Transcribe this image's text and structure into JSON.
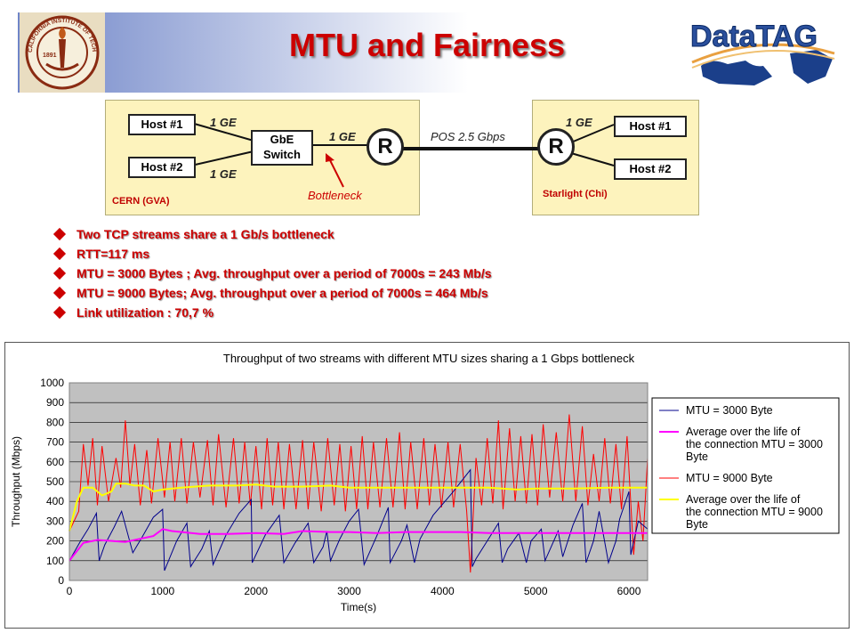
{
  "slide": {
    "title": "MTU and Fairness",
    "left_logo_text": "CALIFORNIA INSTITUTE OF TECHNOLOGY",
    "left_logo_year": "1891",
    "right_logo_text": "DataTAG"
  },
  "diagram": {
    "left_site": "CERN (GVA)",
    "right_site": "Starlight (Chi)",
    "left_host1": "Host #1",
    "left_host2": "Host #2",
    "right_host1": "Host #1",
    "right_host2": "Host #2",
    "switch_label": "GbE Switch",
    "link_h1": "1 GE",
    "link_h2": "1 GE",
    "link_switch": "1 GE",
    "link_right": "1 GE",
    "wan_link": "POS 2.5 Gbps",
    "router_label": "R",
    "bottleneck": "Bottleneck"
  },
  "bullets": [
    "Two TCP streams share a 1 Gb/s bottleneck",
    "RTT=117 ms",
    "MTU = 3000 Bytes ; Avg. throughput over a period of 7000s = 243 Mb/s",
    "MTU = 9000 Bytes; Avg. throughput over a period of 7000s = 464 Mb/s",
    "Link utilization  : 70,7 %"
  ],
  "chart_data": {
    "type": "line",
    "title": "Throughput of two streams with different MTU sizes sharing a 1 Gbps bottleneck",
    "xlabel": "Time(s)",
    "ylabel": "Throughput (Mbps)",
    "xlim": [
      0,
      6200
    ],
    "ylim": [
      0,
      1000
    ],
    "xticks": [
      0,
      1000,
      2000,
      3000,
      4000,
      5000,
      6000
    ],
    "yticks": [
      0,
      100,
      200,
      300,
      400,
      500,
      600,
      700,
      800,
      900,
      1000
    ],
    "grid": true,
    "plot_background": "#c0c0c0",
    "legend_position": "right",
    "series": [
      {
        "name": "MTU = 3000 Byte",
        "color": "#00008b",
        "x": [
          0,
          120,
          200,
          290,
          320,
          380,
          480,
          560,
          680,
          780,
          900,
          1000,
          1020,
          1150,
          1260,
          1300,
          1420,
          1500,
          1540,
          1680,
          1820,
          1950,
          1960,
          2100,
          2250,
          2300,
          2420,
          2560,
          2620,
          2720,
          2760,
          2800,
          2900,
          3000,
          3100,
          3160,
          3300,
          3420,
          3440,
          3560,
          3620,
          3700,
          3760,
          3900,
          4100,
          4300,
          4320,
          4360,
          4480,
          4600,
          4640,
          4700,
          4820,
          4900,
          4950,
          5060,
          5100,
          5240,
          5290,
          5400,
          5500,
          5540,
          5620,
          5680,
          5780,
          5860,
          5900,
          6000,
          6020,
          6100,
          6200
        ],
        "y": [
          100,
          200,
          260,
          340,
          100,
          180,
          270,
          350,
          140,
          220,
          320,
          360,
          50,
          200,
          290,
          70,
          160,
          250,
          80,
          230,
          340,
          410,
          90,
          230,
          330,
          90,
          190,
          290,
          90,
          170,
          250,
          100,
          210,
          300,
          360,
          80,
          230,
          370,
          90,
          200,
          280,
          90,
          210,
          330,
          440,
          560,
          70,
          110,
          200,
          290,
          90,
          160,
          240,
          90,
          200,
          260,
          100,
          250,
          120,
          280,
          390,
          90,
          200,
          350,
          90,
          200,
          310,
          450,
          130,
          300,
          260
        ]
      },
      {
        "name": "Average over the life of the connection MTU = 3000 Byte",
        "color": "#ff00ff",
        "x": [
          0,
          150,
          300,
          600,
          900,
          1000,
          1100,
          1400,
          1700,
          2000,
          2300,
          2500,
          2800,
          3000,
          3300,
          3600,
          3900,
          4200,
          4500,
          5000,
          5500,
          6000,
          6200
        ],
        "y": [
          100,
          190,
          205,
          195,
          225,
          260,
          250,
          235,
          235,
          240,
          235,
          250,
          245,
          245,
          240,
          245,
          245,
          245,
          240,
          240,
          240,
          240,
          240
        ]
      },
      {
        "name": "MTU = 9000 Byte",
        "color": "#ff0000",
        "x": [
          0,
          100,
          150,
          200,
          250,
          300,
          350,
          420,
          500,
          550,
          600,
          650,
          700,
          760,
          830,
          880,
          950,
          1020,
          1080,
          1130,
          1200,
          1260,
          1330,
          1400,
          1480,
          1540,
          1600,
          1680,
          1760,
          1820,
          1880,
          1940,
          2000,
          2060,
          2120,
          2180,
          2240,
          2300,
          2360,
          2430,
          2500,
          2560,
          2620,
          2700,
          2770,
          2840,
          2900,
          2960,
          3020,
          3080,
          3140,
          3200,
          3260,
          3330,
          3400,
          3470,
          3540,
          3600,
          3660,
          3730,
          3800,
          3860,
          3920,
          3990,
          4060,
          4120,
          4190,
          4260,
          4300,
          4360,
          4420,
          4480,
          4540,
          4600,
          4650,
          4720,
          4780,
          4840,
          4900,
          4960,
          5020,
          5080,
          5150,
          5220,
          5290,
          5360,
          5430,
          5500,
          5560,
          5620,
          5680,
          5740,
          5800,
          5860,
          5920,
          5980,
          6050,
          6100,
          6150,
          6200
        ],
        "y": [
          250,
          350,
          690,
          480,
          720,
          380,
          680,
          400,
          620,
          470,
          810,
          480,
          690,
          380,
          660,
          390,
          720,
          420,
          700,
          400,
          720,
          390,
          700,
          420,
          710,
          380,
          740,
          370,
          720,
          390,
          700,
          380,
          680,
          360,
          720,
          380,
          700,
          360,
          690,
          360,
          710,
          360,
          700,
          350,
          720,
          380,
          690,
          350,
          680,
          360,
          730,
          360,
          700,
          370,
          720,
          370,
          750,
          360,
          700,
          360,
          720,
          380,
          690,
          370,
          700,
          370,
          690,
          350,
          40,
          620,
          380,
          720,
          390,
          810,
          360,
          770,
          400,
          730,
          390,
          740,
          380,
          790,
          420,
          750,
          400,
          840,
          400,
          780,
          380,
          640,
          400,
          720,
          390,
          690,
          360,
          730,
          130,
          400,
          200,
          620
        ]
      },
      {
        "name": "Average over the life of the connection MTU = 9000 Byte",
        "color": "#ffff00",
        "x": [
          0,
          80,
          150,
          250,
          350,
          450,
          500,
          600,
          700,
          800,
          900,
          1000,
          1200,
          1500,
          1800,
          2000,
          2200,
          2500,
          2800,
          3000,
          3300,
          3600,
          3900,
          4200,
          4500,
          4800,
          5000,
          5400,
          5800,
          6200
        ],
        "y": [
          250,
          400,
          470,
          470,
          430,
          450,
          490,
          490,
          480,
          480,
          450,
          460,
          470,
          480,
          480,
          485,
          475,
          475,
          480,
          470,
          470,
          470,
          470,
          470,
          470,
          460,
          465,
          465,
          470,
          470
        ]
      }
    ]
  }
}
